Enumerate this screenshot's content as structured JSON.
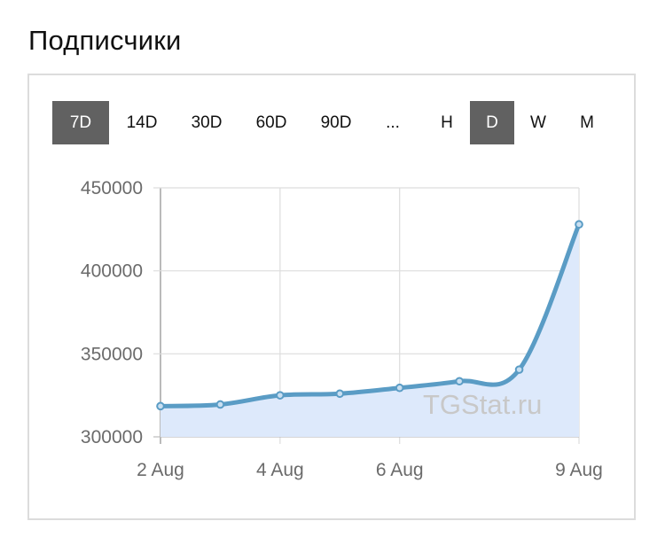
{
  "page": {
    "title": "Подписчики"
  },
  "toolbar": {
    "range_buttons": [
      {
        "label": "7D",
        "active": true
      },
      {
        "label": "14D",
        "active": false
      },
      {
        "label": "30D",
        "active": false
      },
      {
        "label": "60D",
        "active": false
      },
      {
        "label": "90D",
        "active": false
      },
      {
        "label": "...",
        "active": false
      }
    ],
    "granularity_buttons": [
      {
        "label": "H",
        "active": false
      },
      {
        "label": "D",
        "active": true
      },
      {
        "label": "W",
        "active": false
      },
      {
        "label": "M",
        "active": false
      }
    ]
  },
  "watermark": "TGStat.ru",
  "colors": {
    "line": "#5a9cc5",
    "fill": "#dde9fb",
    "active_button": "#616161",
    "grid": "#dddddd"
  },
  "chart_data": {
    "type": "area",
    "x": [
      "2018-08-02",
      "2018-08-03",
      "2018-08-04",
      "2018-08-05",
      "2018-08-06",
      "2018-08-07",
      "2018-08-08",
      "2018-08-09"
    ],
    "series": [
      {
        "values": [
          318500,
          319500,
          325000,
          326000,
          329500,
          333500,
          340500,
          428000
        ]
      }
    ],
    "x_ticks": [
      {
        "date": "2018-08-02",
        "label": "2 Aug"
      },
      {
        "date": "2018-08-04",
        "label": "4 Aug"
      },
      {
        "date": "2018-08-06",
        "label": "6 Aug"
      },
      {
        "date": "2018-08-09",
        "label": "9 Aug"
      }
    ],
    "y_ticks": [
      300000,
      350000,
      400000,
      450000
    ],
    "ylim": [
      300000,
      450000
    ],
    "grid": true,
    "legend": "none"
  }
}
